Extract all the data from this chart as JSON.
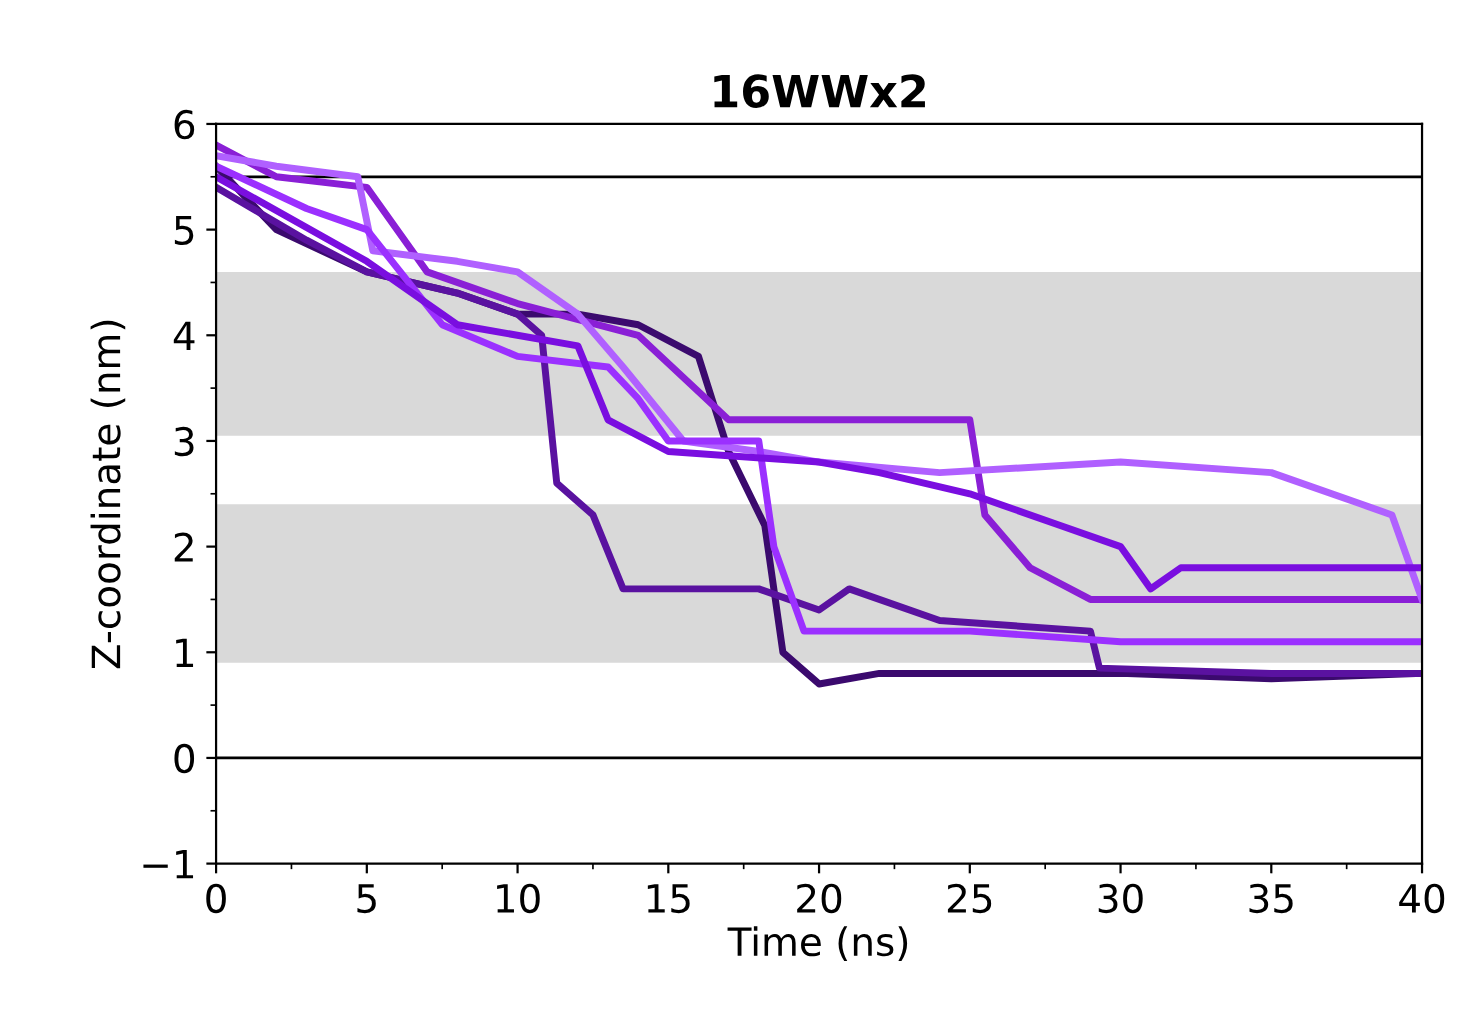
{
  "chart_data": {
    "type": "line",
    "title": "16WWx2",
    "xlabel": "Time (ns)",
    "ylabel": "Z-coordinate (nm)",
    "xlim": [
      0,
      40
    ],
    "ylim": [
      -1,
      6
    ],
    "xticks": [
      0,
      5,
      10,
      15,
      20,
      25,
      30,
      35,
      40
    ],
    "yticks": [
      {
        "value": -1,
        "label": "−1"
      },
      0,
      1,
      2,
      3,
      4,
      5,
      6
    ],
    "grid": false,
    "ref_lines": [
      {
        "axis": "y",
        "value": 5.5,
        "color": "#000000"
      },
      {
        "axis": "y",
        "value": 0,
        "color": "#000000"
      }
    ],
    "bands": [
      {
        "axis": "y",
        "from": 3.05,
        "to": 4.6,
        "color": "#d9d9d9"
      },
      {
        "axis": "y",
        "from": 0.9,
        "to": 2.4,
        "color": "#d9d9d9"
      }
    ],
    "series": [
      {
        "color": "#3b0a6e",
        "x": [
          0,
          2,
          5,
          8,
          10,
          12,
          14,
          16,
          17,
          18.2,
          18.8,
          20,
          22,
          26,
          30,
          35,
          40
        ],
        "values": [
          5.6,
          5.0,
          4.6,
          4.4,
          4.2,
          4.2,
          4.1,
          3.8,
          2.9,
          2.2,
          1.0,
          0.7,
          0.8,
          0.8,
          0.8,
          0.75,
          0.8
        ]
      },
      {
        "color": "#5a12a0",
        "x": [
          0,
          3,
          5,
          8,
          10,
          10.8,
          11.3,
          12.5,
          13.5,
          16,
          18,
          20,
          21,
          24,
          29,
          29.3,
          35,
          40
        ],
        "values": [
          5.4,
          4.9,
          4.6,
          4.4,
          4.2,
          4.0,
          2.6,
          2.3,
          1.6,
          1.6,
          1.6,
          1.4,
          1.6,
          1.3,
          1.2,
          0.85,
          0.8,
          0.8
        ]
      },
      {
        "color": "#8a1fd6",
        "x": [
          0,
          2,
          5,
          7,
          10,
          14,
          15.5,
          17,
          20,
          25,
          25.5,
          27,
          29,
          35,
          40
        ],
        "values": [
          5.8,
          5.5,
          5.4,
          4.6,
          4.3,
          4.0,
          3.6,
          3.2,
          3.2,
          3.2,
          2.3,
          1.8,
          1.5,
          1.5,
          1.5
        ]
      },
      {
        "color": "#b060ff",
        "x": [
          0,
          2,
          4.7,
          5.2,
          8,
          10,
          12,
          13.5,
          15.5,
          18,
          20,
          24,
          30,
          35,
          38,
          39,
          40
        ],
        "values": [
          5.7,
          5.6,
          5.5,
          4.8,
          4.7,
          4.6,
          4.2,
          3.7,
          3.0,
          2.9,
          2.8,
          2.7,
          2.8,
          2.7,
          2.4,
          2.3,
          1.5
        ]
      },
      {
        "color": "#9b30ff",
        "x": [
          0,
          3,
          5,
          7.5,
          10,
          13,
          14,
          15,
          18,
          18.5,
          19.5,
          25,
          30,
          35,
          40
        ],
        "values": [
          5.6,
          5.2,
          5.0,
          4.1,
          3.8,
          3.7,
          3.4,
          3.0,
          3.0,
          2.0,
          1.2,
          1.2,
          1.1,
          1.1,
          1.1
        ]
      },
      {
        "color": "#7a0ee0",
        "x": [
          0,
          5,
          8,
          12,
          13,
          15,
          20,
          22,
          25,
          28,
          30,
          31,
          32,
          36,
          40
        ],
        "values": [
          5.5,
          4.7,
          4.1,
          3.9,
          3.2,
          2.9,
          2.8,
          2.7,
          2.5,
          2.2,
          2.0,
          1.6,
          1.8,
          1.8,
          1.8
        ]
      }
    ]
  }
}
